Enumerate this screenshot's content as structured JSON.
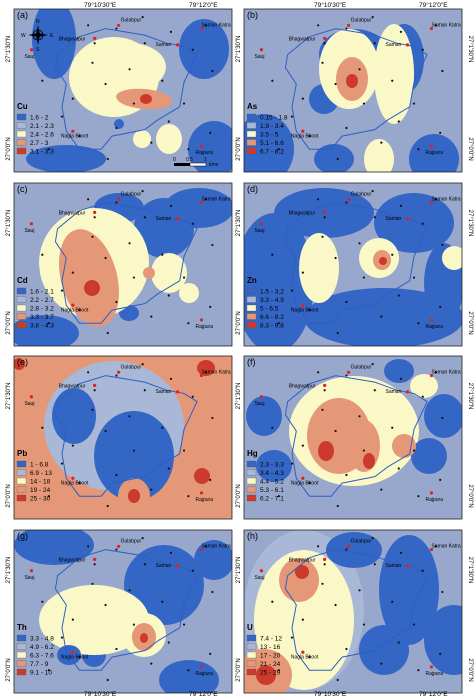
{
  "figure": {
    "top_coords": [
      "79°10'30\"E",
      "79°12'0\"E"
    ],
    "bottom_coords": [
      "79°10'30\"E",
      "79°12'0\"E"
    ],
    "left_coords": [
      "27°1'30\"N",
      "27°0'0\"N"
    ],
    "right_coords": [
      "27°1'30\"N",
      "27°0'0\"N"
    ]
  },
  "places": [
    "Gulabpur",
    "Bhagwatpur",
    "Saman Katra",
    "Saman",
    "Sauj",
    "Nagla Bhoot",
    "Rajpura"
  ],
  "north_arrow": {
    "n": "N",
    "s": "S",
    "e": "E",
    "w": "W"
  },
  "scale_bar": {
    "labels": [
      "0",
      "0.5",
      "1"
    ],
    "unit": "kms"
  },
  "colors": {
    "background": "#98a7cc",
    "class1": "#3466c6",
    "class2": "#a9b8d6",
    "class3": "#fbf8c7",
    "class4": "#e49878",
    "class5": "#cc3a2c"
  },
  "panels": [
    {
      "tag": "(a)",
      "element": "Cu",
      "classes": [
        "1.6 - 2",
        "2.1 - 2.3",
        "2.4 - 2.6",
        "2.7 - 3",
        "3.1 - 3.3"
      ]
    },
    {
      "tag": "(b)",
      "element": "As",
      "classes": [
        "0.15 - 1.8",
        "1.9 - 3.4",
        "3.5 - 5",
        "5.1 - 6.6",
        "6.7 - 8.2"
      ]
    },
    {
      "tag": "(c)",
      "element": "Cd",
      "classes": [
        "1.6 - 2.1",
        "2.2 - 2.7",
        "2.8 - 3.2",
        "3.3 - 3.7",
        "3.8 - 4.3"
      ]
    },
    {
      "tag": "(d)",
      "element": "Zn",
      "classes": [
        "1.5 - 3.2",
        "3.3 - 4.9",
        "5 - 6.5",
        "6.6 - 8.2",
        "8.3 - 9.8"
      ]
    },
    {
      "tag": "(e)",
      "element": "Pb",
      "classes": [
        "1 - 6.8",
        "6.9 - 13",
        "14 - 18",
        "19 - 24",
        "25 - 30"
      ]
    },
    {
      "tag": "(f)",
      "element": "Hg",
      "classes": [
        "2.3 - 3.3",
        "3.4 - 4.3",
        "4.4 - 5.2",
        "5.3 - 6.1",
        "6.2 - 7.1"
      ]
    },
    {
      "tag": "(g)",
      "element": "Th",
      "classes": [
        "3.3 - 4.8",
        "4.9 - 6.2",
        "6.3 - 7.6",
        "7.7 - 9",
        "9.1 - 10"
      ]
    },
    {
      "tag": "(h)",
      "element": "U",
      "classes": [
        "7.4 - 12",
        "13 - 16",
        "17 - 20",
        "21 - 24",
        "25 - 29"
      ]
    }
  ]
}
